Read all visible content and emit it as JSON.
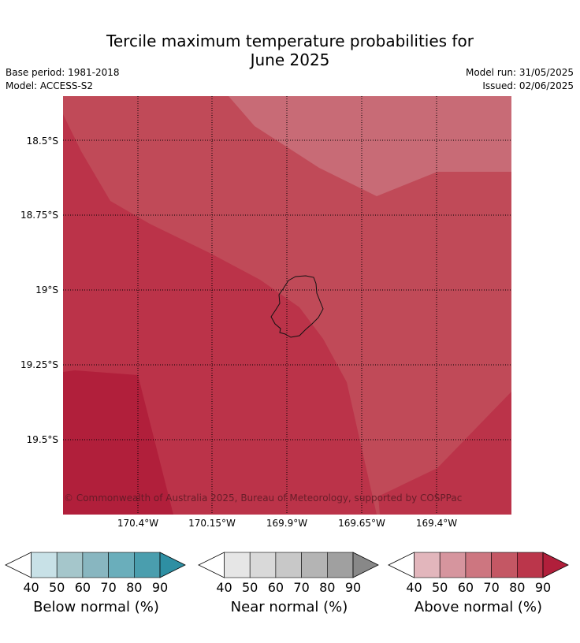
{
  "title_line1": "Tercile maximum temperature probabilities for",
  "title_line2": "June 2025",
  "base_period": "Base period: 1981-2018",
  "model": "Model: ACCESS-S2",
  "model_run": "Model run: 31/05/2025",
  "issued": "Issued: 02/06/2025",
  "latitudes": [
    "18.5°S",
    "18.75°S",
    "19°S",
    "19.25°S",
    "19.5°S"
  ],
  "longitudes": [
    "170.4°W",
    "170.15°W",
    "169.9°W",
    "169.65°W",
    "169.4°W"
  ],
  "copyright": "© Commonwealth of Australia 2025, Bureau of Meteorology, supported by COSPPac",
  "colorbars": [
    {
      "label": "Below normal (%)",
      "ticks": [
        "40",
        "50",
        "60",
        "70",
        "80",
        "90"
      ],
      "colors": [
        "#c8e1e7",
        "#a5c6cb",
        "#88b6c0",
        "#6aaebb",
        "#4a9eae",
        "#2e8fa3"
      ]
    },
    {
      "label": "Near normal (%)",
      "ticks": [
        "40",
        "50",
        "60",
        "70",
        "80",
        "90"
      ],
      "colors": [
        "#e6e6e6",
        "#d9d9d9",
        "#c8c8c8",
        "#b4b4b4",
        "#a0a0a0",
        "#888888"
      ]
    },
    {
      "label": "Above normal (%)",
      "ticks": [
        "40",
        "50",
        "60",
        "70",
        "80",
        "90"
      ],
      "colors": [
        "#e2b6bc",
        "#d6959e",
        "#cd7680",
        "#c45764",
        "#bb364b",
        "#b11f3b"
      ]
    }
  ],
  "map_colors": {
    "level_60_70": "#c86b76",
    "level_70_80": "#c04a58",
    "level_80_90": "#bb3349",
    "level_90": "#b11f3b"
  }
}
